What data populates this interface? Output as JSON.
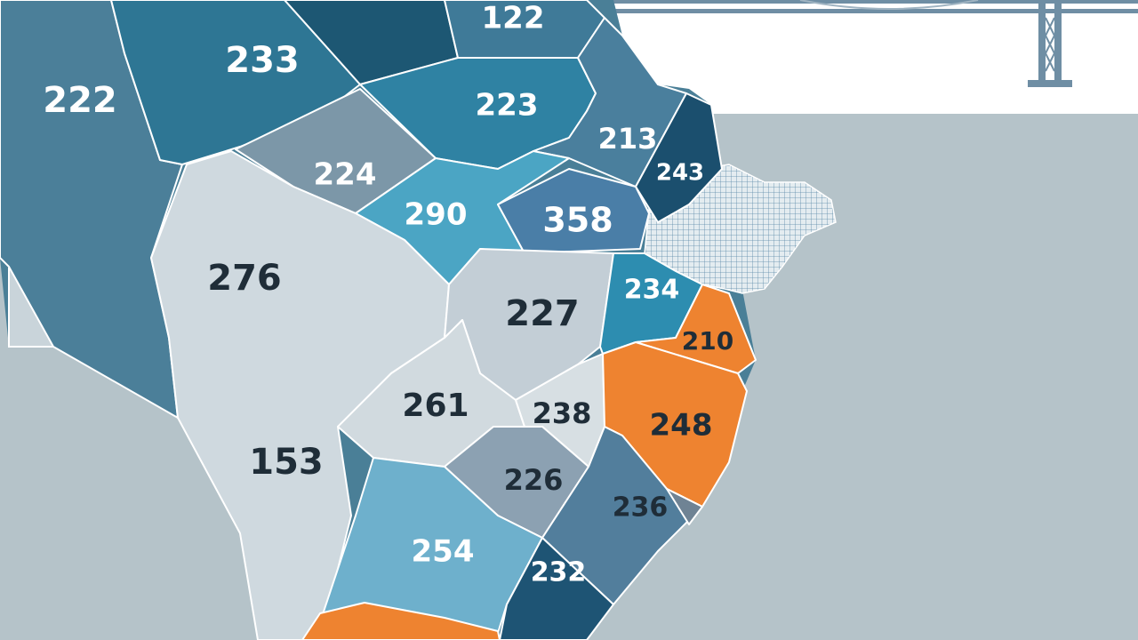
{
  "map": {
    "background_color": "#b5c3c9",
    "land_color": "#4a7f97",
    "region_border_color": "#ffffff",
    "regions": [
      {
        "label": "222",
        "fill": "#4b7f99",
        "text": "#ffffff"
      },
      {
        "label": "233",
        "fill": "#2e7694",
        "text": "#ffffff"
      },
      {
        "label": "",
        "fill": "#1d5773",
        "text": "#ffffff"
      },
      {
        "label": "122",
        "fill": "#3f7a98",
        "text": "#ffffff"
      },
      {
        "label": "223",
        "fill": "#2f82a3",
        "text": "#ffffff"
      },
      {
        "label": "224",
        "fill": "#7c97a8",
        "text": "#ffffff"
      },
      {
        "label": "213",
        "fill": "#4a7f9d",
        "text": "#ffffff"
      },
      {
        "label": "243",
        "fill": "#1b4f6e",
        "text": "#ffffff"
      },
      {
        "label": "290",
        "fill": "#4ba5c4",
        "text": "#ffffff"
      },
      {
        "label": "358",
        "fill": "#4a7ea7",
        "text": "#ffffff"
      },
      {
        "label": "276",
        "fill": "#cfd9df",
        "text": "#1f2d38"
      },
      {
        "label": "227",
        "fill": "#c3ced6",
        "text": "#1f2d38"
      },
      {
        "label": "261",
        "fill": "#d1dadf",
        "text": "#1f2d38"
      },
      {
        "label": "238",
        "fill": "#d7dfe3",
        "text": "#1f2d38"
      },
      {
        "label": "226",
        "fill": "#8ca1b2",
        "text": "#1f2d38"
      },
      {
        "label": "254",
        "fill": "#6eb0cc",
        "text": "#ffffff"
      },
      {
        "label": "",
        "fill": "#ee8330",
        "text": "#ffffff"
      },
      {
        "label": "234",
        "fill": "#2d8db0",
        "text": "#ffffff"
      },
      {
        "label": "210",
        "fill": "#ee8330",
        "text": "#1f2d38"
      },
      {
        "label": "248",
        "fill": "#ee8330",
        "text": "#1f2d38"
      },
      {
        "label": "236",
        "fill": "#527e9c",
        "text": "#1f2d38"
      },
      {
        "label": "",
        "fill": "#6f8394",
        "text": "#ffffff"
      },
      {
        "label": "232",
        "fill": "#1e5474",
        "text": "#ffffff"
      },
      {
        "label": "153",
        "fill": "#cfd9df",
        "text": "#1f2d38"
      }
    ]
  }
}
